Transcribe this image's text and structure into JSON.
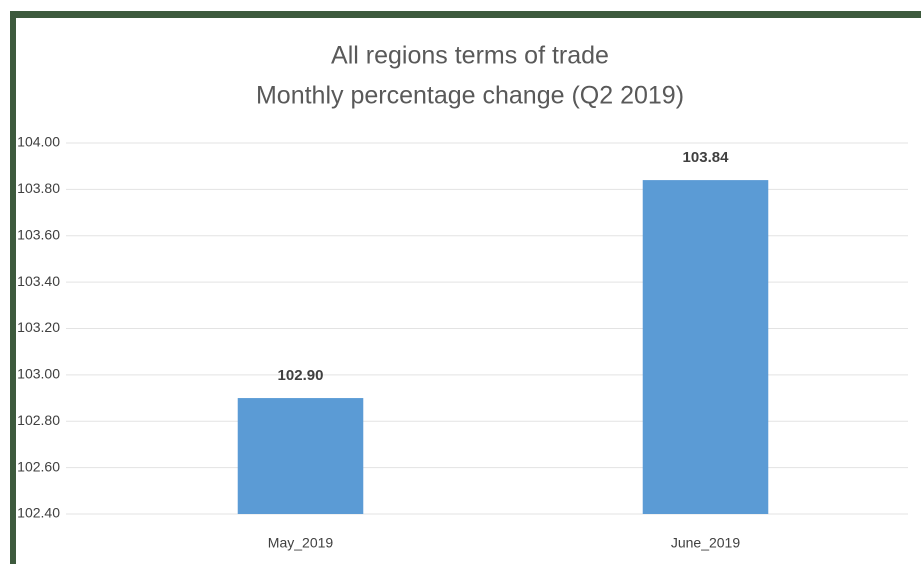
{
  "chart_data": {
    "type": "bar",
    "title": [
      "All regions terms of trade",
      "Monthly percentage change (Q2 2019)"
    ],
    "categories": [
      "May_2019",
      "June_2019"
    ],
    "values": [
      102.9,
      103.84
    ],
    "value_labels": [
      "102.90",
      "103.84"
    ],
    "color": "#5b9bd5",
    "ylim": [
      102.4,
      104.0
    ],
    "yticks": [
      {
        "value": 102.4,
        "label": "102.40"
      },
      {
        "value": 102.6,
        "label": "102.60"
      },
      {
        "value": 102.8,
        "label": "102.80"
      },
      {
        "value": 103.0,
        "label": "103.00"
      },
      {
        "value": 103.2,
        "label": "103.20"
      },
      {
        "value": 103.4,
        "label": "103.40"
      },
      {
        "value": 103.6,
        "label": "103.60"
      },
      {
        "value": 103.8,
        "label": "103.80"
      },
      {
        "value": 104.0,
        "label": "104.00"
      }
    ],
    "grid": true
  }
}
